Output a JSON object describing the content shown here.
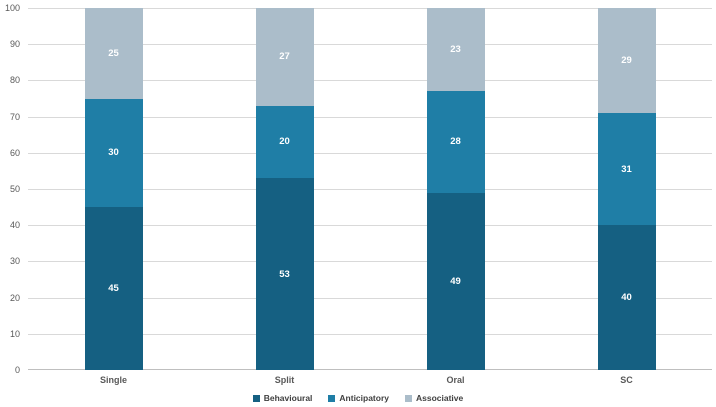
{
  "chart_data": {
    "type": "bar",
    "stacked": true,
    "title": "",
    "xlabel": "",
    "ylabel": "",
    "categories": [
      "Single",
      "Split",
      "Oral",
      "SC"
    ],
    "series": [
      {
        "name": "Behavioural",
        "color": "#156082",
        "values": [
          45,
          53,
          49,
          40
        ]
      },
      {
        "name": "Anticipatory",
        "color": "#1f7ea6",
        "values": [
          30,
          20,
          28,
          31
        ]
      },
      {
        "name": "Associative",
        "color": "#abbdca",
        "values": [
          25,
          27,
          23,
          29
        ]
      }
    ],
    "ylim": [
      0,
      100
    ],
    "yticks": [
      0,
      10,
      20,
      30,
      40,
      50,
      60,
      70,
      80,
      90,
      100
    ],
    "grid": true,
    "legend_position": "bottom",
    "value_labels": true,
    "value_label_color": "#ffffff",
    "gridline_color": "#d9d9d9"
  }
}
